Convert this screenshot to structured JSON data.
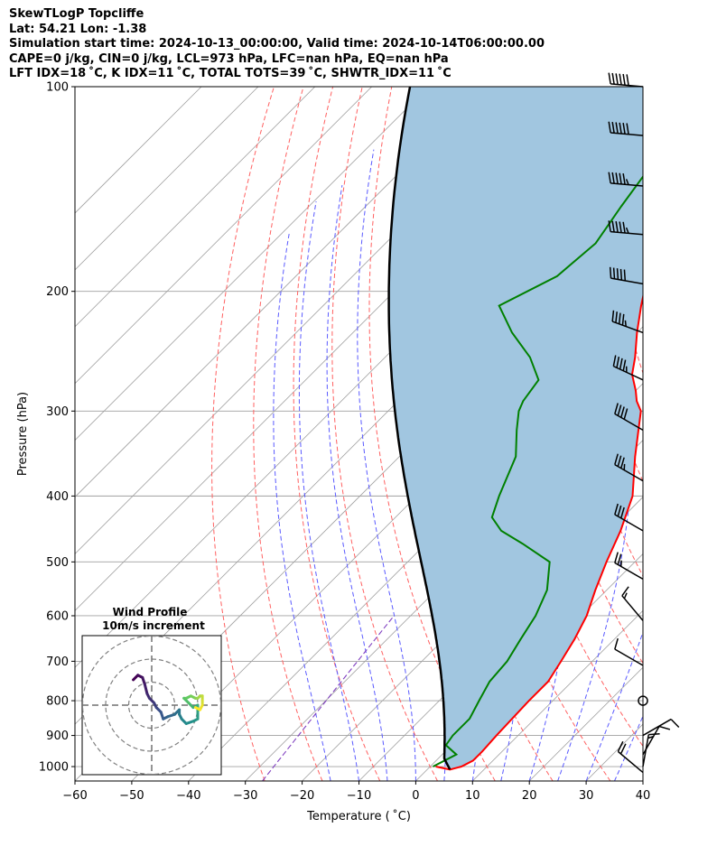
{
  "header": {
    "title": "SkewTLogP Topcliffe",
    "location": "Lat: 54.21   Lon: -1.38",
    "times": "Simulation start time: 2024-10-13_00:00:00, Valid time: 2024-10-14T06:00:00.00",
    "indices_1": "CAPE=0 j/kg, CIN=0 j/kg, LCL=973 hPa, LFC=nan hPa, EQ=nan hPa",
    "indices_2": "LFT IDX=18 ˚C, K IDX=11 ˚C, TOTAL TOTS=39 ˚C, SHWTR_IDX=11 ˚C"
  },
  "chart_data": {
    "type": "skewt-logp",
    "xlabel": "Temperature ( ˚C)",
    "ylabel": "Pressure (hPa)",
    "xlim": [
      -60,
      40
    ],
    "ylim": [
      1050,
      100
    ],
    "x_ticks": [
      -60,
      -50,
      -40,
      -30,
      -20,
      -10,
      0,
      10,
      20,
      30,
      40
    ],
    "y_ticks": [
      1000,
      900,
      800,
      700,
      600,
      500,
      400,
      300,
      200,
      100
    ],
    "log_y": true,
    "grid": true,
    "temperature": {
      "color": "#ff0000",
      "points": [
        [
          1000,
          1.0
        ],
        [
          1010,
          4.0
        ],
        [
          1000,
          5.5
        ],
        [
          980,
          6.5
        ],
        [
          950,
          6.5
        ],
        [
          900,
          6.2
        ],
        [
          850,
          6.0
        ],
        [
          800,
          5.8
        ],
        [
          750,
          5.8
        ],
        [
          700,
          4.5
        ],
        [
          650,
          3.0
        ],
        [
          600,
          1.0
        ],
        [
          550,
          -2.0
        ],
        [
          500,
          -5.0
        ],
        [
          450,
          -8.0
        ],
        [
          400,
          -12.0
        ],
        [
          350,
          -18.5
        ],
        [
          300,
          -25.5
        ],
        [
          290,
          -28.0
        ],
        [
          280,
          -30.0
        ],
        [
          265,
          -33.5
        ],
        [
          250,
          -36.0
        ],
        [
          230,
          -40.0
        ],
        [
          210,
          -44.0
        ],
        [
          200,
          -46.0
        ],
        [
          180,
          -50.0
        ],
        [
          160,
          -54.0
        ],
        [
          150,
          -56.5
        ],
        [
          140,
          -59.0
        ],
        [
          130,
          -61.0
        ],
        [
          120,
          -63.0
        ],
        [
          110,
          -64.0
        ],
        [
          100,
          -64.0
        ]
      ]
    },
    "dewpoint": {
      "color": "#008000",
      "points": [
        [
          1000,
          0.5
        ],
        [
          960,
          2.5
        ],
        [
          930,
          -1.0
        ],
        [
          900,
          -1.5
        ],
        [
          850,
          -1.5
        ],
        [
          800,
          -3.0
        ],
        [
          750,
          -4.5
        ],
        [
          700,
          -5.0
        ],
        [
          650,
          -6.5
        ],
        [
          600,
          -8.0
        ],
        [
          550,
          -10.5
        ],
        [
          500,
          -15.0
        ],
        [
          470,
          -23.0
        ],
        [
          450,
          -29.0
        ],
        [
          430,
          -33.0
        ],
        [
          400,
          -35.5
        ],
        [
          350,
          -39.5
        ],
        [
          320,
          -44.0
        ],
        [
          300,
          -47.0
        ],
        [
          290,
          -48.0
        ],
        [
          270,
          -49.0
        ],
        [
          250,
          -54.5
        ],
        [
          230,
          -62.0
        ],
        [
          210,
          -69.0
        ],
        [
          190,
          -64.0
        ],
        [
          170,
          -63.0
        ],
        [
          150,
          -65.0
        ],
        [
          130,
          -67.0
        ],
        [
          110,
          -70.0
        ],
        [
          100,
          -72.0
        ]
      ]
    },
    "parcel_profile": {
      "color": "#000000",
      "start": [
        1010,
        4.0
      ]
    },
    "cape_cin_shading": "#a1c6e0",
    "dry_adiabats_color": "#ff6060",
    "moist_adiabats_color": "#5a5aff",
    "mixing_ratio_color": "#8040c0",
    "isotherm_grid_color": "#a0a0a0",
    "wind_barbs": [
      {
        "p": 100,
        "speed_kt": 60,
        "dir": 275
      },
      {
        "p": 118,
        "speed_kt": 60,
        "dir": 275
      },
      {
        "p": 140,
        "speed_kt": 55,
        "dir": 275
      },
      {
        "p": 165,
        "speed_kt": 55,
        "dir": 275
      },
      {
        "p": 195,
        "speed_kt": 50,
        "dir": 280
      },
      {
        "p": 230,
        "speed_kt": 45,
        "dir": 290
      },
      {
        "p": 270,
        "speed_kt": 45,
        "dir": 295
      },
      {
        "p": 320,
        "speed_kt": 40,
        "dir": 300
      },
      {
        "p": 380,
        "speed_kt": 35,
        "dir": 300
      },
      {
        "p": 450,
        "speed_kt": 30,
        "dir": 300
      },
      {
        "p": 530,
        "speed_kt": 25,
        "dir": 300
      },
      {
        "p": 610,
        "speed_kt": 15,
        "dir": 320
      },
      {
        "p": 710,
        "speed_kt": 10,
        "dir": 300
      },
      {
        "p": 800,
        "speed_kt": 0,
        "dir": 0
      },
      {
        "p": 900,
        "speed_kt": 10,
        "dir": 60
      },
      {
        "p": 960,
        "speed_kt": 10,
        "dir": 30
      },
      {
        "p": 1000,
        "speed_kt": 15,
        "dir": 10
      },
      {
        "p": 1020,
        "speed_kt": 20,
        "dir": 310
      }
    ],
    "hodograph": {
      "title": "Wind Profile",
      "subtitle": "10m/s increment",
      "rings_ms": [
        10,
        20,
        30
      ],
      "points_uv": [
        [
          -8,
          11
        ],
        [
          -6,
          13
        ],
        [
          -4,
          12
        ],
        [
          -3,
          9
        ],
        [
          -2,
          5
        ],
        [
          -1,
          3
        ],
        [
          1,
          1
        ],
        [
          2,
          -1
        ],
        [
          3,
          -2
        ],
        [
          4,
          -3
        ],
        [
          5,
          -6
        ],
        [
          7,
          -5
        ],
        [
          10,
          -4
        ],
        [
          12,
          -2
        ],
        [
          12,
          -4
        ],
        [
          13,
          -6
        ],
        [
          15,
          -8
        ],
        [
          18,
          -7
        ],
        [
          20,
          -6
        ],
        [
          20,
          -3
        ],
        [
          20,
          0
        ],
        [
          18,
          -1
        ],
        [
          17,
          0
        ],
        [
          16,
          1
        ],
        [
          14,
          3
        ],
        [
          15,
          3
        ],
        [
          17,
          4
        ],
        [
          19,
          3
        ],
        [
          20,
          3
        ],
        [
          21,
          4
        ],
        [
          22,
          4
        ],
        [
          22,
          2
        ],
        [
          22,
          0
        ],
        [
          21,
          -2
        ],
        [
          19,
          -1
        ]
      ],
      "colormap": [
        "#440154",
        "#3b528b",
        "#21918c",
        "#5ec962",
        "#fde725"
      ]
    }
  }
}
